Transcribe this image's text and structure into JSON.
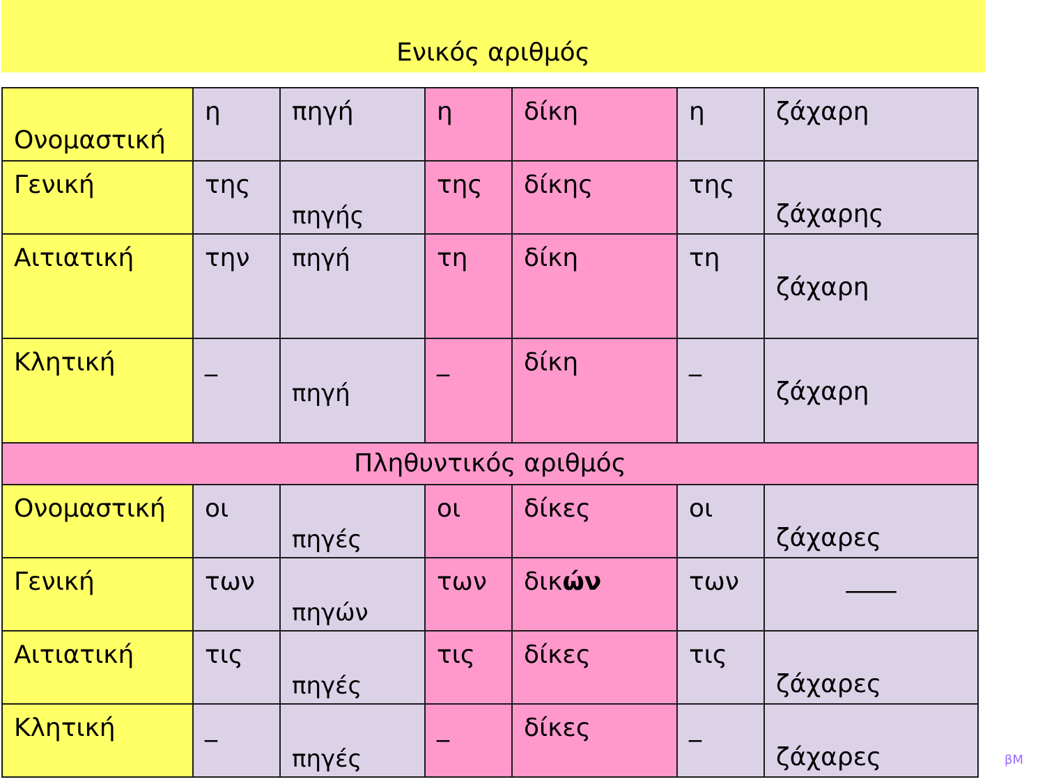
{
  "singular_title": "Ενικός αριθμός",
  "plural_title": "Πληθυντικός αριθμός",
  "singular": {
    "nominative": {
      "case": "Ονομαστική",
      "a1": "η",
      "w1": "πηγή",
      "a2": "η",
      "w2": "δίκη",
      "a3": "η",
      "w3": "ζάχαρη"
    },
    "genitive": {
      "case": "Γενική",
      "a1": "της",
      "w1": "πηγής",
      "a2": "της",
      "w2": "δίκης",
      "a3": "της",
      "w3": "ζάχαρης"
    },
    "accusative": {
      "case": "Αιτιατική",
      "a1": "την",
      "w1": "πηγή",
      "a2": "τη",
      "w2": "δίκη",
      "a3": "τη",
      "w3": "ζάχαρη"
    },
    "vocative": {
      "case": "Κλητική",
      "a1": "_",
      "w1": "πηγή",
      "a2": "_",
      "w2": "δίκη",
      "a3": "_",
      "w3": "ζάχαρη"
    }
  },
  "plural": {
    "nominative": {
      "case": "Ονομαστική",
      "a1": "οι",
      "w1": "πηγές",
      "a2": "οι",
      "w2": "δίκες",
      "a3": "οι",
      "w3": "ζάχαρες"
    },
    "genitive": {
      "case": "Γενική",
      "a1": "των",
      "w1": "πηγών",
      "a2": "των",
      "w2_stem": "δικ",
      "w2_ending": "ών",
      "a3": "των",
      "w3": "____"
    },
    "accusative": {
      "case": "Αιτιατική",
      "a1": "τις",
      "w1": "πηγές",
      "a2": "τις",
      "w2": "δίκες",
      "a3": "τις",
      "w3": "ζάχαρες"
    },
    "vocative": {
      "case": "Κλητική",
      "a1": "_",
      "w1": "πηγές",
      "a2": "_",
      "w2": "δίκες",
      "a3": "_",
      "w3": "ζάχαρες"
    }
  },
  "watermark": "βΜ",
  "colors": {
    "case_column": "#ffff66",
    "lavender": "#dcd2e8",
    "pink": "#ff99cc"
  }
}
